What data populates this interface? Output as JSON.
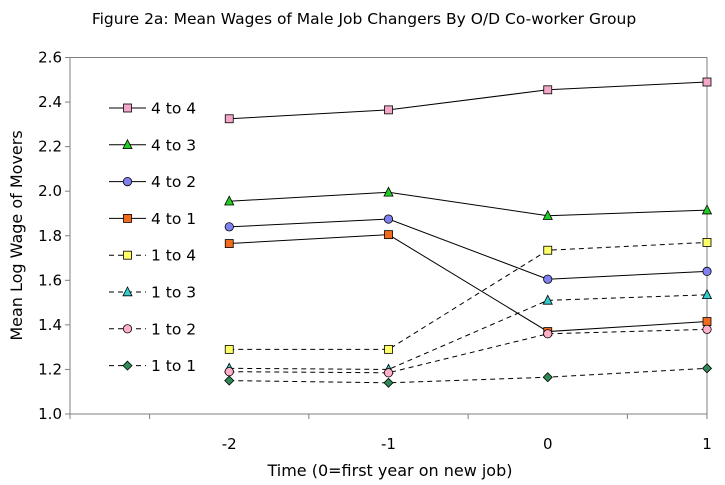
{
  "chart_data": {
    "type": "line",
    "title": "Figure 2a: Mean Wages of Male Job Changers By O/D Co-worker Group",
    "xlabel": "Time (0=first year on new job)",
    "ylabel": "Mean Log Wage of Movers",
    "x": [
      -2,
      -1,
      0,
      1
    ],
    "x_tick_labels": [
      "-2",
      "-1",
      "0",
      "1"
    ],
    "xlim": [
      -3,
      1
    ],
    "ylim": [
      1.0,
      2.6
    ],
    "y_ticks": [
      1.0,
      1.2,
      1.4,
      1.6,
      1.8,
      2.0,
      2.2,
      2.4,
      2.6
    ],
    "y_tick_labels": [
      "1.0",
      "1.2",
      "1.4",
      "1.6",
      "1.8",
      "2.0",
      "2.2",
      "2.4",
      "2.6"
    ],
    "grid": false,
    "legend_position": "left",
    "series": [
      {
        "name": "4 to 4",
        "values": [
          2.325,
          2.365,
          2.455,
          2.49
        ],
        "marker": "square",
        "fill": "#f4a6c8",
        "line": "solid"
      },
      {
        "name": "4 to 3",
        "values": [
          1.955,
          1.995,
          1.89,
          1.915
        ],
        "marker": "triangle",
        "fill": "#22cc22",
        "line": "solid"
      },
      {
        "name": "4 to 2",
        "values": [
          1.84,
          1.875,
          1.605,
          1.64
        ],
        "marker": "circle",
        "fill": "#8080f0",
        "line": "solid"
      },
      {
        "name": "4 to 1",
        "values": [
          1.765,
          1.805,
          1.37,
          1.415
        ],
        "marker": "square",
        "fill": "#f26a1b",
        "line": "solid"
      },
      {
        "name": "1 to 4",
        "values": [
          1.29,
          1.29,
          1.735,
          1.77
        ],
        "marker": "square",
        "fill": "#ffff66",
        "line": "dashed"
      },
      {
        "name": "1 to 3",
        "values": [
          1.205,
          1.2,
          1.51,
          1.535
        ],
        "marker": "triangle",
        "fill": "#33cccc",
        "line": "dashed"
      },
      {
        "name": "1 to 2",
        "values": [
          1.19,
          1.185,
          1.36,
          1.38
        ],
        "marker": "circle",
        "fill": "#ffb0c8",
        "line": "dashed"
      },
      {
        "name": "1 to 1",
        "values": [
          1.15,
          1.14,
          1.165,
          1.205
        ],
        "marker": "diamond",
        "fill": "#2e8b57",
        "line": "dashed"
      }
    ]
  }
}
